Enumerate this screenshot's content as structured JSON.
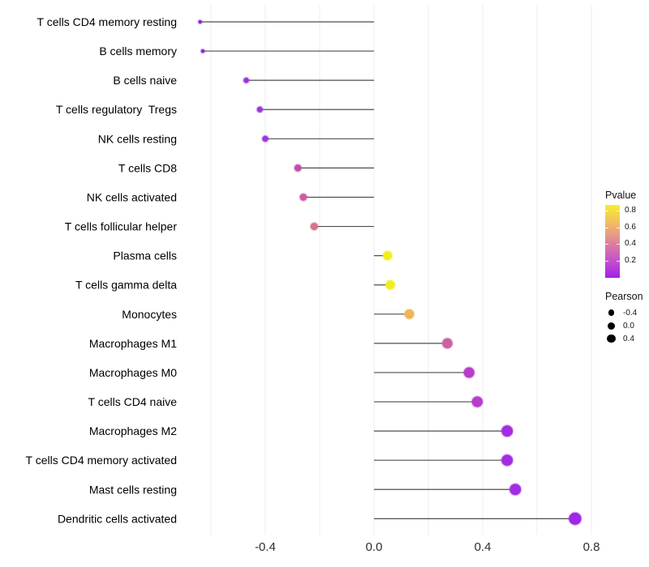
{
  "chart_data": {
    "type": "scatter",
    "variant": "lollipop",
    "title": "",
    "xlabel": "",
    "ylabel": "",
    "xlim": [
      -0.72,
      0.86
    ],
    "grid": "vertical-light",
    "x_ticks": [
      {
        "value": -0.4,
        "label": "-0.4"
      },
      {
        "value": 0.0,
        "label": "0.0"
      },
      {
        "value": 0.4,
        "label": "0.4"
      },
      {
        "value": 0.8,
        "label": "0.8"
      }
    ],
    "gridline_values": [
      -0.6,
      -0.4,
      -0.2,
      0.0,
      0.2,
      0.4,
      0.6,
      0.8
    ],
    "points": [
      {
        "label": "T cells CD4 memory resting",
        "pearson": -0.64,
        "color": "#8a25d2"
      },
      {
        "label": "B cells memory",
        "pearson": -0.63,
        "color": "#8a25d2"
      },
      {
        "label": "B cells naive",
        "pearson": -0.47,
        "color": "#9c34da"
      },
      {
        "label": "T cells regulatory  Tregs",
        "pearson": -0.42,
        "color": "#9e36da"
      },
      {
        "label": "NK cells resting",
        "pearson": -0.4,
        "color": "#9e36da"
      },
      {
        "label": "T cells CD8",
        "pearson": -0.28,
        "color": "#c151ab"
      },
      {
        "label": "NK cells activated",
        "pearson": -0.26,
        "color": "#c85c9f"
      },
      {
        "label": "T cells follicular helper",
        "pearson": -0.22,
        "color": "#d6748c"
      },
      {
        "label": "Plasma cells",
        "pearson": 0.05,
        "color": "#f1ee1e"
      },
      {
        "label": "T cells gamma delta",
        "pearson": 0.06,
        "color": "#f1ee1e"
      },
      {
        "label": "Monocytes",
        "pearson": 0.13,
        "color": "#efb558"
      },
      {
        "label": "Macrophages M1",
        "pearson": 0.27,
        "color": "#cc60a5"
      },
      {
        "label": "Macrophages M0",
        "pearson": 0.35,
        "color": "#b93ccd"
      },
      {
        "label": "T cells CD4 naive",
        "pearson": 0.38,
        "color": "#b53dce"
      },
      {
        "label": "Macrophages M2",
        "pearson": 0.49,
        "color": "#a42ce2"
      },
      {
        "label": "T cells CD4 memory activated",
        "pearson": 0.49,
        "color": "#a42ce2"
      },
      {
        "label": "Mast cells resting",
        "pearson": 0.52,
        "color": "#a32de2"
      },
      {
        "label": "Dendritic cells activated",
        "pearson": 0.74,
        "color": "#a026e4"
      }
    ],
    "legend_pvalue": {
      "title": "Pvalue",
      "tick_labels": [
        "0.8",
        "0.6",
        "0.4",
        "0.2"
      ],
      "gradient_stops": [
        "#f8ee2d",
        "#f3c657",
        "#e89c83",
        "#d770ae",
        "#c04ad0",
        "#a21ee8"
      ]
    },
    "legend_pearson": {
      "title": "Pearson",
      "dot_color": "#000000",
      "items": [
        {
          "label": "-0.4",
          "value": -0.4
        },
        {
          "label": "0.0",
          "value": 0.0
        },
        {
          "label": "0.4",
          "value": 0.4
        }
      ]
    },
    "style": {
      "stem_color": "#2f2f2f",
      "gridline_color": "#ececec",
      "axis_text_color": "#2e2e2e",
      "label_text_color": "#000000"
    }
  }
}
